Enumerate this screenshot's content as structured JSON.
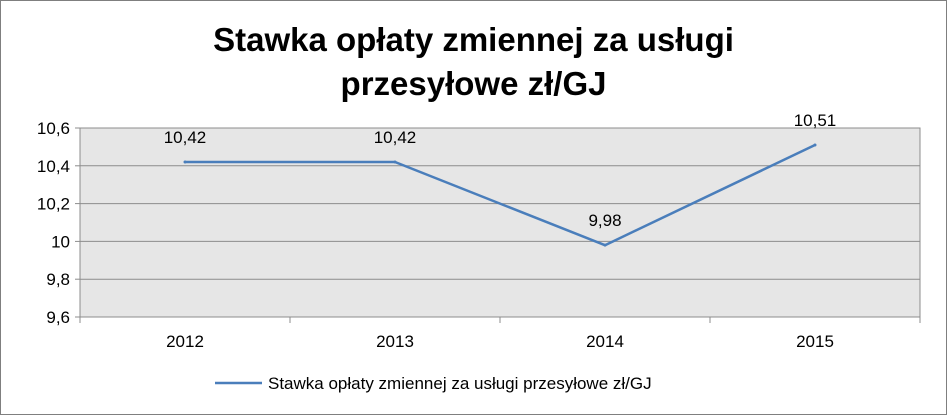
{
  "chart_data": {
    "type": "line",
    "title_lines": [
      "Stawka opłaty zmiennej za usługi",
      "przesyłowe zł/GJ"
    ],
    "categories": [
      "2012",
      "2013",
      "2014",
      "2015"
    ],
    "series": [
      {
        "name": "Stawka opłaty zmiennej za usługi przesyłowe zł/GJ",
        "values": [
          10.42,
          10.42,
          9.98,
          10.51
        ],
        "labels": [
          "10,42",
          "10,42",
          "9,98",
          "10,51"
        ],
        "color": "#4a7ebb"
      }
    ],
    "ylim": [
      9.6,
      10.6
    ],
    "yticks": [
      9.6,
      9.8,
      10,
      10.2,
      10.4,
      10.6
    ],
    "ytick_labels": [
      "9,6",
      "9,8",
      "10",
      "10,2",
      "10,4",
      "10,6"
    ],
    "grid": true,
    "plot_background": "#e6e6e6",
    "legend_position": "bottom"
  }
}
